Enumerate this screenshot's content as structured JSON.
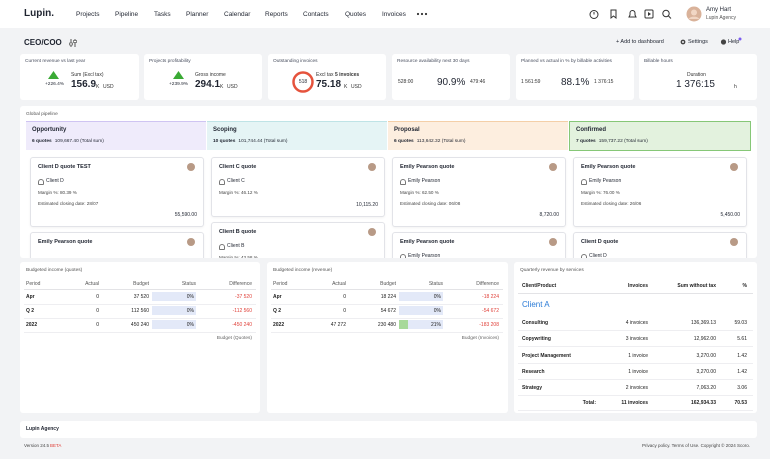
{
  "nav": {
    "logo": "Lupin.",
    "items": [
      "Projects",
      "Pipeline",
      "Tasks",
      "Planner",
      "Calendar",
      "Reports",
      "Contacts",
      "Quotes",
      "Invoices"
    ],
    "user_name": "Amy Hart",
    "user_company": "Lupin Agency"
  },
  "toolbar": {
    "title": "CEO/COO",
    "add": "+ Add to dashboard",
    "settings": "Settings",
    "help": "Help"
  },
  "kpis": [
    {
      "title": "Current revenue vs last year",
      "change": "+226.4%",
      "label": "Sum (Excl tax)",
      "value": "156.9",
      "unit": "K",
      "currency": "USD"
    },
    {
      "title": "Projects profitability",
      "change": "+239.9%",
      "label": "Gross income",
      "value": "294.1",
      "unit": "K",
      "currency": "USD"
    },
    {
      "title": "Outstanding invoices",
      "gauge": "518",
      "label": "Excl tax",
      "count": "5 invoices",
      "value": "75.18",
      "unit": "K",
      "currency": "USD"
    },
    {
      "title": "Resource availability next 30 days",
      "left": "528:00",
      "percent": "90.9%",
      "right": "479:46"
    },
    {
      "title": "Planned vs actual in % by billable activities",
      "left": "1 561:59",
      "percent": "88.1%",
      "right": "1 376:15"
    },
    {
      "title": "Billable hours",
      "label": "Duration",
      "value": "1 376:15",
      "unit": "h"
    }
  ],
  "pipeline": {
    "title": "Global pipeline",
    "columns": [
      {
        "name": "Opportunity",
        "count": "6 quotes",
        "total": "109,667.40 (Total sum)",
        "cards": [
          {
            "title": "Client D quote TEST",
            "client": "Client D",
            "margin": "Margin %: 80.39 %",
            "date": "Estimated closing date: 28/07",
            "amount": "55,590.00"
          },
          {
            "title": "Emily Pearson quote"
          }
        ]
      },
      {
        "name": "Scoping",
        "count": "10 quotes",
        "total": "101,744.44 (Total sum)",
        "cards": [
          {
            "title": "Client C quote",
            "client": "Client C",
            "margin": "Margin %: 46.12 %",
            "amount": "10,115.20"
          },
          {
            "title": "Client B quote",
            "client": "Client B",
            "margin": "Margin %: 43.58 %"
          }
        ]
      },
      {
        "name": "Proposal",
        "count": "6 quotes",
        "total": "113,642.32 (Total sum)",
        "cards": [
          {
            "title": "Emily Pearson quote",
            "client": "Emily Pearson",
            "margin": "Margin %: 62.50 %",
            "date": "Estimated closing date: 06/08",
            "amount": "8,720.00"
          },
          {
            "title": "Emily Pearson quote",
            "client": "Emily Pearson"
          }
        ]
      },
      {
        "name": "Confirmed",
        "count": "7 quotes",
        "total": "159,737.22 (Total sum)",
        "cards": [
          {
            "title": "Emily Pearson quote",
            "client": "Emily Pearson",
            "margin": "Margin %: 76.00 %",
            "date": "Estimated closing date: 26/06",
            "amount": "5,450.00"
          },
          {
            "title": "Client D quote",
            "client": "Client D"
          }
        ]
      }
    ]
  },
  "budget_quotes": {
    "title": "Budgeted income (quotes)",
    "headers": [
      "Period",
      "Actual",
      "Budget",
      "Status",
      "Difference"
    ],
    "rows": [
      {
        "period": "Apr",
        "actual": "0",
        "budget": "37 520",
        "status": {
          "value": 0,
          "label": "0%"
        },
        "difference": "-37 520"
      },
      {
        "period": "Q 2",
        "actual": "0",
        "budget": "112 560",
        "status": {
          "value": 0,
          "label": "0%"
        },
        "difference": "-112 560"
      },
      {
        "period": "2022",
        "actual": "0",
        "budget": "450 240",
        "status": {
          "value": 0,
          "label": "0%"
        },
        "difference": "-450 240"
      }
    ],
    "footer": "Budget (Quotes)"
  },
  "budget_revenue": {
    "title": "Budgeted income (revenue)",
    "headers": [
      "Period",
      "Actual",
      "Budget",
      "Status",
      "Difference"
    ],
    "rows": [
      {
        "period": "Apr",
        "actual": "0",
        "budget": "18 224",
        "status": {
          "value": 0,
          "label": "0%"
        },
        "difference": "-18 224"
      },
      {
        "period": "Q 2",
        "actual": "0",
        "budget": "54 672",
        "status": {
          "value": 0,
          "label": "0%"
        },
        "difference": "-54 672"
      },
      {
        "period": "2022",
        "actual": "47 272",
        "budget": "230 480",
        "status": {
          "value": 21,
          "label": "21%"
        },
        "difference": "-183 208"
      }
    ],
    "footer": "Budget (Invoices)"
  },
  "services": {
    "title": "Quarterly revenue by services",
    "headers": [
      "Client/Product",
      "Invoices",
      "Sum without tax",
      "%"
    ],
    "group": "Client A",
    "rows": [
      {
        "name": "Consulting",
        "invoices": "4 invoices",
        "sum": "136,369.13",
        "percent": "59.03"
      },
      {
        "name": "Copywriting",
        "invoices": "3 invoices",
        "sum": "12,962.00",
        "percent": "5.61"
      },
      {
        "name": "Project Management",
        "invoices": "1 invoice",
        "sum": "3,270.00",
        "percent": "1.42"
      },
      {
        "name": "Research",
        "invoices": "1 invoice",
        "sum": "3,270.00",
        "percent": "1.42"
      },
      {
        "name": "Strategy",
        "invoices": "2 invoices",
        "sum": "7,063.20",
        "percent": "3.06"
      }
    ],
    "total": {
      "name": "Total:",
      "invoices": "11 invoices",
      "sum": "162,934.33",
      "percent": "70.53"
    }
  },
  "footer": {
    "company": "Lupin Agency",
    "version": "Version 24.5",
    "beta": "BETA",
    "legal": "Privacy policy. Terms of Use. Copyright © 2024 Scoro."
  }
}
